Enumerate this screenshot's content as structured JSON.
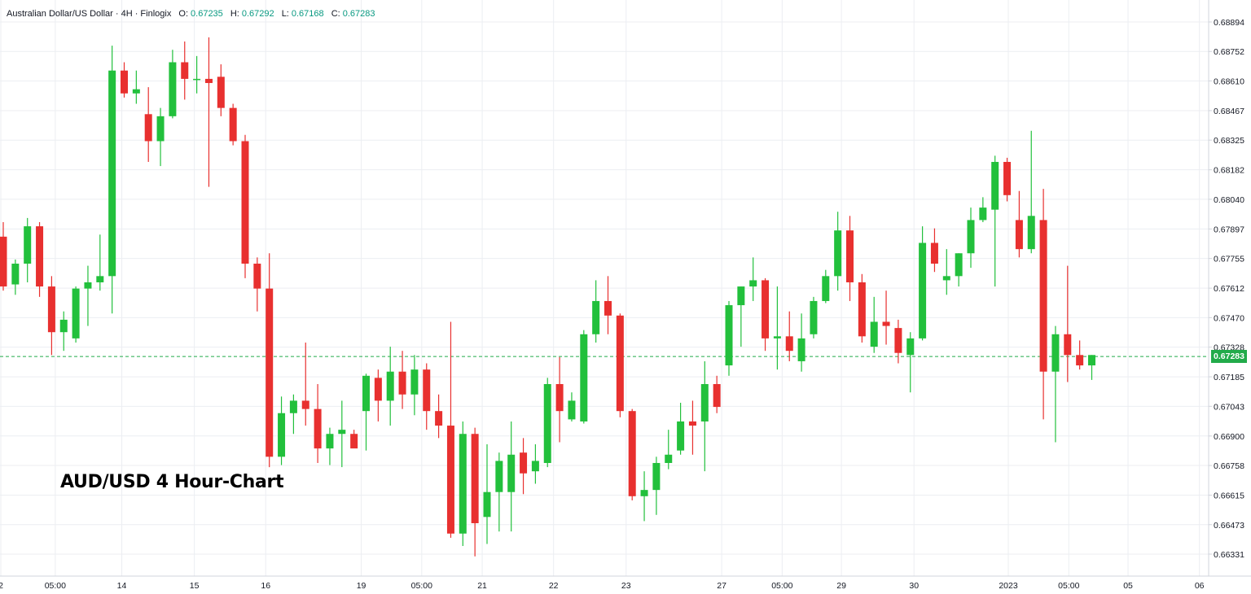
{
  "header": {
    "symbol": "Australian Dollar/US Dollar · 4H · Finlogix",
    "o_label": "O:",
    "o_value": "0.67235",
    "h_label": "H:",
    "h_value": "0.67292",
    "l_label": "L:",
    "l_value": "0.67168",
    "c_label": "C:",
    "c_value": "0.67283"
  },
  "overlay_title": "AUD/USD 4 Hour-Chart",
  "last_price_label": "0.67283",
  "colors": {
    "up": "#22c03c",
    "down": "#e8302f",
    "grid": "#eceef2",
    "last_line": "#22ab4a"
  },
  "chart_data": {
    "type": "candlestick",
    "y_range": [
      0.6626,
      0.6896
    ],
    "y_ticks": [
      "0.68894",
      "0.68752",
      "0.68610",
      "0.68467",
      "0.68325",
      "0.68182",
      "0.68040",
      "0.67897",
      "0.67755",
      "0.67612",
      "0.67470",
      "0.67328",
      "0.67185",
      "0.67043",
      "0.66900",
      "0.66758",
      "0.66615",
      "0.66473",
      "0.66331"
    ],
    "x_ticks": [
      {
        "label": "2",
        "i": -0.2
      },
      {
        "label": "05:00",
        "i": 4.3
      },
      {
        "label": "14",
        "i": 9.8
      },
      {
        "label": "15",
        "i": 15.8
      },
      {
        "label": "16",
        "i": 21.7
      },
      {
        "label": "19",
        "i": 29.6
      },
      {
        "label": "05:00",
        "i": 34.6
      },
      {
        "label": "21",
        "i": 39.6
      },
      {
        "label": "22",
        "i": 45.5
      },
      {
        "label": "23",
        "i": 51.5
      },
      {
        "label": "27",
        "i": 59.4
      },
      {
        "label": "05:00",
        "i": 64.4
      },
      {
        "label": "29",
        "i": 69.3
      },
      {
        "label": "30",
        "i": 75.3
      },
      {
        "label": "2023",
        "i": 83.1
      },
      {
        "label": "05:00",
        "i": 88.1
      },
      {
        "label": "05",
        "i": 93.0
      },
      {
        "label": "06",
        "i": 98.9
      }
    ],
    "last_price": 0.67283,
    "candles": [
      [
        0.6786,
        0.6793,
        0.676,
        0.6762
      ],
      [
        0.6763,
        0.6775,
        0.6758,
        0.6773
      ],
      [
        0.6773,
        0.6795,
        0.6764,
        0.6791
      ],
      [
        0.6791,
        0.6793,
        0.6757,
        0.6762
      ],
      [
        0.6762,
        0.6767,
        0.6729,
        0.674
      ],
      [
        0.674,
        0.675,
        0.6731,
        0.6746
      ],
      [
        0.6737,
        0.6762,
        0.6735,
        0.6761
      ],
      [
        0.6761,
        0.6772,
        0.6743,
        0.6764
      ],
      [
        0.6764,
        0.6787,
        0.676,
        0.6767
      ],
      [
        0.6767,
        0.6878,
        0.6749,
        0.6866
      ],
      [
        0.6866,
        0.687,
        0.6853,
        0.6855
      ],
      [
        0.6855,
        0.6866,
        0.685,
        0.6857
      ],
      [
        0.6845,
        0.6858,
        0.6822,
        0.6832
      ],
      [
        0.6832,
        0.6848,
        0.682,
        0.6844
      ],
      [
        0.6844,
        0.6876,
        0.6843,
        0.687
      ],
      [
        0.687,
        0.688,
        0.6852,
        0.6862
      ],
      [
        0.6862,
        0.6873,
        0.6855,
        0.6862
      ],
      [
        0.6862,
        0.6882,
        0.681,
        0.686
      ],
      [
        0.6863,
        0.6869,
        0.6844,
        0.6848
      ],
      [
        0.6848,
        0.685,
        0.683,
        0.6832
      ],
      [
        0.6832,
        0.6835,
        0.6766,
        0.6773
      ],
      [
        0.6773,
        0.6776,
        0.675,
        0.6761
      ],
      [
        0.6761,
        0.6778,
        0.6675,
        0.668
      ],
      [
        0.668,
        0.6709,
        0.6676,
        0.6701
      ],
      [
        0.6701,
        0.671,
        0.6691,
        0.6707
      ],
      [
        0.6707,
        0.6735,
        0.6695,
        0.6703
      ],
      [
        0.6703,
        0.6715,
        0.6677,
        0.6684
      ],
      [
        0.6684,
        0.6694,
        0.6676,
        0.6691
      ],
      [
        0.6691,
        0.6707,
        0.6675,
        0.6693
      ],
      [
        0.6691,
        0.6693,
        0.6685,
        0.6684
      ],
      [
        0.6702,
        0.672,
        0.6683,
        0.6719
      ],
      [
        0.6718,
        0.6722,
        0.6697,
        0.6707
      ],
      [
        0.6707,
        0.6733,
        0.6695,
        0.6721
      ],
      [
        0.6721,
        0.6731,
        0.6703,
        0.671
      ],
      [
        0.671,
        0.6729,
        0.67,
        0.6722
      ],
      [
        0.6722,
        0.6725,
        0.6693,
        0.6702
      ],
      [
        0.6702,
        0.671,
        0.6689,
        0.6695
      ],
      [
        0.6695,
        0.6745,
        0.6641,
        0.6643
      ],
      [
        0.6643,
        0.6697,
        0.6637,
        0.6691
      ],
      [
        0.6691,
        0.6694,
        0.6632,
        0.6648
      ],
      [
        0.6651,
        0.6686,
        0.6638,
        0.6663
      ],
      [
        0.6663,
        0.6682,
        0.6644,
        0.6678
      ],
      [
        0.6663,
        0.6697,
        0.6644,
        0.6681
      ],
      [
        0.6682,
        0.6689,
        0.6662,
        0.6672
      ],
      [
        0.6673,
        0.6686,
        0.6667,
        0.6678
      ],
      [
        0.6677,
        0.6718,
        0.6675,
        0.6715
      ],
      [
        0.6715,
        0.6728,
        0.6687,
        0.6702
      ],
      [
        0.6698,
        0.6711,
        0.6697,
        0.6707
      ],
      [
        0.6697,
        0.6741,
        0.6696,
        0.6739
      ],
      [
        0.6739,
        0.6765,
        0.6735,
        0.6755
      ],
      [
        0.6755,
        0.6767,
        0.6739,
        0.6748
      ],
      [
        0.6748,
        0.6749,
        0.6699,
        0.6702
      ],
      [
        0.6702,
        0.6703,
        0.6659,
        0.6661
      ],
      [
        0.6661,
        0.6673,
        0.6649,
        0.6664
      ],
      [
        0.6664,
        0.668,
        0.6652,
        0.6677
      ],
      [
        0.6677,
        0.6693,
        0.6674,
        0.6681
      ],
      [
        0.6683,
        0.6706,
        0.6681,
        0.6697
      ],
      [
        0.6697,
        0.6707,
        0.6681,
        0.6695
      ],
      [
        0.6697,
        0.6726,
        0.6673,
        0.6715
      ],
      [
        0.6715,
        0.6719,
        0.6701,
        0.6704
      ],
      [
        0.6724,
        0.6755,
        0.6719,
        0.6753
      ],
      [
        0.6753,
        0.6762,
        0.6733,
        0.6762
      ],
      [
        0.6762,
        0.6776,
        0.6755,
        0.6765
      ],
      [
        0.6765,
        0.6766,
        0.6731,
        0.6737
      ],
      [
        0.6737,
        0.6762,
        0.6722,
        0.6738
      ],
      [
        0.6738,
        0.675,
        0.6726,
        0.6731
      ],
      [
        0.6726,
        0.6749,
        0.6721,
        0.6737
      ],
      [
        0.6739,
        0.6757,
        0.6737,
        0.6755
      ],
      [
        0.6755,
        0.677,
        0.6754,
        0.6767
      ],
      [
        0.6767,
        0.6798,
        0.676,
        0.6789
      ],
      [
        0.6789,
        0.6796,
        0.6755,
        0.6764
      ],
      [
        0.6764,
        0.6768,
        0.6735,
        0.6738
      ],
      [
        0.6733,
        0.6757,
        0.673,
        0.6745
      ],
      [
        0.6745,
        0.676,
        0.6734,
        0.6743
      ],
      [
        0.6742,
        0.6746,
        0.6725,
        0.673
      ],
      [
        0.6729,
        0.674,
        0.6711,
        0.6737
      ],
      [
        0.6737,
        0.6791,
        0.6736,
        0.6783
      ],
      [
        0.6783,
        0.679,
        0.6769,
        0.6773
      ],
      [
        0.6765,
        0.678,
        0.6758,
        0.6767
      ],
      [
        0.6767,
        0.6778,
        0.6762,
        0.6778
      ],
      [
        0.6778,
        0.68,
        0.6771,
        0.6794
      ],
      [
        0.6794,
        0.6805,
        0.6793,
        0.68
      ],
      [
        0.6799,
        0.6825,
        0.6762,
        0.6822
      ],
      [
        0.6822,
        0.6824,
        0.6803,
        0.6806
      ],
      [
        0.6794,
        0.6808,
        0.6776,
        0.678
      ],
      [
        0.678,
        0.6837,
        0.6778,
        0.6796
      ],
      [
        0.6794,
        0.6809,
        0.6698,
        0.6721
      ],
      [
        0.6721,
        0.6743,
        0.6687,
        0.6739
      ],
      [
        0.6739,
        0.6772,
        0.6716,
        0.6729
      ],
      [
        0.6729,
        0.6736,
        0.6722,
        0.6724
      ],
      [
        0.6724,
        0.6729,
        0.6717,
        0.6729
      ]
    ]
  }
}
